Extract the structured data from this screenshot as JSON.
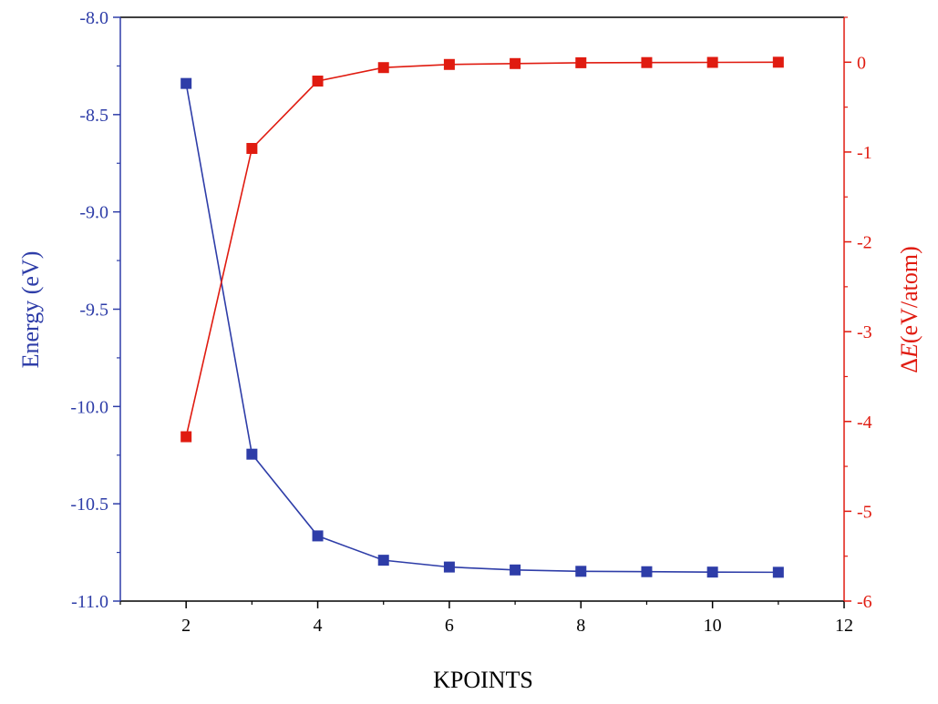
{
  "colors": {
    "energy": "#2e3da8",
    "delta": "#e01b10",
    "axis": "#000000"
  },
  "chart_data": {
    "type": "line",
    "xlabel": "KPOINTS",
    "ylabel_left": "Energy (eV)",
    "ylabel_right": {
      "prefix": "Δ",
      "italic": "E",
      "suffix": "(eV/atom)"
    },
    "xlim": [
      1,
      12
    ],
    "ylim_left": [
      -11.0,
      -8.0
    ],
    "ylim_right": [
      -6,
      0.5
    ],
    "x_ticks": [
      "2",
      "4",
      "6",
      "8",
      "10",
      "12"
    ],
    "y_ticks_left": [
      "-8.0",
      "-8.5",
      "-9.0",
      "-9.5",
      "-10.0",
      "-10.5",
      "-11.0"
    ],
    "y_ticks_right": [
      "0",
      "-1",
      "-2",
      "-3",
      "-4",
      "-5",
      "-6"
    ],
    "grid": false,
    "x": [
      2,
      3,
      4,
      5,
      6,
      7,
      8,
      9,
      10,
      11
    ],
    "series": [
      {
        "axis": "left",
        "marker": "square",
        "values": [
          -8.34,
          -10.245,
          -10.665,
          -10.79,
          -10.825,
          -10.84,
          -10.847,
          -10.849,
          -10.851,
          -10.852
        ]
      },
      {
        "axis": "right",
        "marker": "square",
        "values": [
          -4.17,
          -0.96,
          -0.21,
          -0.06,
          -0.025,
          -0.015,
          -0.006,
          -0.004,
          -0.002,
          0.0
        ]
      }
    ]
  }
}
